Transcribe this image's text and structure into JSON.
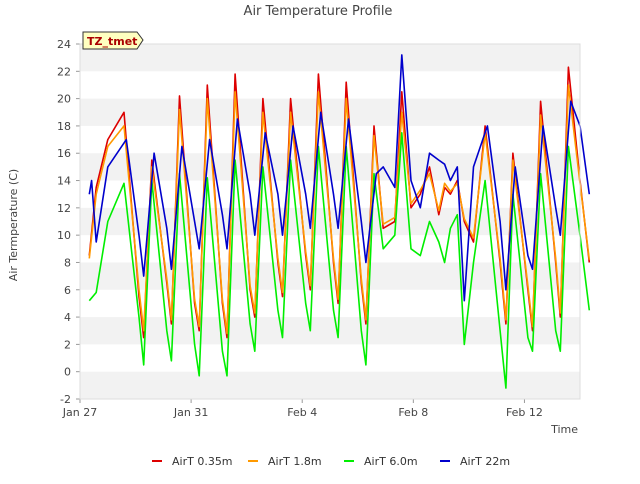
{
  "chart_data": {
    "type": "line",
    "title": "Air Temperature Profile",
    "xlabel": "Time",
    "ylabel": "Air Termperature (C)",
    "ylim": [
      -2,
      24
    ],
    "yticks": [
      -2,
      0,
      2,
      4,
      6,
      8,
      10,
      12,
      14,
      16,
      18,
      20,
      22,
      24
    ],
    "xlim": [
      "2025-01-27",
      "2025-02-14"
    ],
    "xticks": [
      {
        "date": "2025-01-27",
        "label": "Jan 27"
      },
      {
        "date": "2025-01-31",
        "label": "Jan 31"
      },
      {
        "date": "2025-02-04",
        "label": "Feb 4"
      },
      {
        "date": "2025-02-08",
        "label": "Feb 8"
      },
      {
        "date": "2025-02-12",
        "label": "Feb 12"
      }
    ],
    "grid": "horizontal bands",
    "legend_position": "bottom",
    "annotation": "TZ_tmet",
    "series": [
      {
        "name": "AirT 0.35m",
        "color": "#dd0000",
        "points": [
          [
            "2025-01-27 08:00",
            8.5
          ],
          [
            "2025-01-27 14:00",
            13.5
          ],
          [
            "2025-01-28 00:00",
            17.0
          ],
          [
            "2025-01-28 14:00",
            19.0
          ],
          [
            "2025-01-29 03:00",
            5.5
          ],
          [
            "2025-01-29 07:00",
            2.5
          ],
          [
            "2025-01-29 14:00",
            15.5
          ],
          [
            "2025-01-30 03:00",
            6.5
          ],
          [
            "2025-01-30 07:00",
            3.5
          ],
          [
            "2025-01-30 14:00",
            20.2
          ],
          [
            "2025-01-31 03:00",
            5.0
          ],
          [
            "2025-01-31 07:00",
            3.0
          ],
          [
            "2025-01-31 14:00",
            21.0
          ],
          [
            "2025-02-01 03:00",
            5.0
          ],
          [
            "2025-02-01 07:00",
            2.5
          ],
          [
            "2025-02-01 14:00",
            21.8
          ],
          [
            "2025-02-02 03:00",
            6.0
          ],
          [
            "2025-02-02 07:00",
            4.0
          ],
          [
            "2025-02-02 14:00",
            20.0
          ],
          [
            "2025-02-03 03:00",
            8.0
          ],
          [
            "2025-02-03 07:00",
            5.5
          ],
          [
            "2025-02-03 14:00",
            20.0
          ],
          [
            "2025-02-04 03:00",
            8.5
          ],
          [
            "2025-02-04 07:00",
            6.0
          ],
          [
            "2025-02-04 14:00",
            21.8
          ],
          [
            "2025-02-05 03:00",
            8.0
          ],
          [
            "2025-02-05 07:00",
            5.0
          ],
          [
            "2025-02-05 14:00",
            21.2
          ],
          [
            "2025-02-06 03:00",
            6.5
          ],
          [
            "2025-02-06 07:00",
            3.5
          ],
          [
            "2025-02-06 14:00",
            18.0
          ],
          [
            "2025-02-06 22:00",
            10.5
          ],
          [
            "2025-02-07 08:00",
            11.0
          ],
          [
            "2025-02-07 14:00",
            20.5
          ],
          [
            "2025-02-07 22:00",
            12.0
          ],
          [
            "2025-02-08 06:00",
            13.0
          ],
          [
            "2025-02-08 14:00",
            15.0
          ],
          [
            "2025-02-08 22:00",
            11.5
          ],
          [
            "2025-02-09 03:00",
            13.5
          ],
          [
            "2025-02-09 08:00",
            13.0
          ],
          [
            "2025-02-09 14:00",
            14.0
          ],
          [
            "2025-02-09 20:00",
            11.0
          ],
          [
            "2025-02-10 04:00",
            9.5
          ],
          [
            "2025-02-10 14:00",
            18.0
          ],
          [
            "2025-02-11 03:00",
            8.0
          ],
          [
            "2025-02-11 08:00",
            3.5
          ],
          [
            "2025-02-11 14:00",
            16.0
          ],
          [
            "2025-02-12 03:00",
            6.0
          ],
          [
            "2025-02-12 07:00",
            3.0
          ],
          [
            "2025-02-12 14:00",
            19.8
          ],
          [
            "2025-02-13 03:00",
            8.0
          ],
          [
            "2025-02-13 07:00",
            4.0
          ],
          [
            "2025-02-13 14:00",
            22.3
          ],
          [
            "2025-02-14 00:00",
            14.0
          ],
          [
            "2025-02-14 08:00",
            8.0
          ]
        ]
      },
      {
        "name": "AirT 1.8m",
        "color": "#ff9900",
        "points": [
          [
            "2025-01-27 08:00",
            8.3
          ],
          [
            "2025-01-27 14:00",
            13.0
          ],
          [
            "2025-01-28 00:00",
            16.5
          ],
          [
            "2025-01-28 14:00",
            18.0
          ],
          [
            "2025-01-29 03:00",
            6.0
          ],
          [
            "2025-01-29 07:00",
            3.0
          ],
          [
            "2025-01-29 14:00",
            15.0
          ],
          [
            "2025-01-30 03:00",
            6.8
          ],
          [
            "2025-01-30 07:00",
            3.8
          ],
          [
            "2025-01-30 14:00",
            19.2
          ],
          [
            "2025-01-31 03:00",
            5.3
          ],
          [
            "2025-01-31 07:00",
            3.3
          ],
          [
            "2025-01-31 14:00",
            20.0
          ],
          [
            "2025-02-01 03:00",
            5.3
          ],
          [
            "2025-02-01 07:00",
            2.8
          ],
          [
            "2025-02-01 14:00",
            20.5
          ],
          [
            "2025-02-02 03:00",
            6.3
          ],
          [
            "2025-02-02 07:00",
            4.3
          ],
          [
            "2025-02-02 14:00",
            19.0
          ],
          [
            "2025-02-03 03:00",
            8.3
          ],
          [
            "2025-02-03 07:00",
            5.8
          ],
          [
            "2025-02-03 14:00",
            19.0
          ],
          [
            "2025-02-04 03:00",
            8.8
          ],
          [
            "2025-02-04 07:00",
            6.3
          ],
          [
            "2025-02-04 14:00",
            20.5
          ],
          [
            "2025-02-05 03:00",
            8.3
          ],
          [
            "2025-02-05 07:00",
            5.3
          ],
          [
            "2025-02-05 14:00",
            20.0
          ],
          [
            "2025-02-06 03:00",
            6.8
          ],
          [
            "2025-02-06 07:00",
            3.8
          ],
          [
            "2025-02-06 14:00",
            17.3
          ],
          [
            "2025-02-06 22:00",
            10.8
          ],
          [
            "2025-02-07 08:00",
            11.3
          ],
          [
            "2025-02-07 14:00",
            19.0
          ],
          [
            "2025-02-07 22:00",
            12.3
          ],
          [
            "2025-02-08 06:00",
            13.3
          ],
          [
            "2025-02-08 14:00",
            14.5
          ],
          [
            "2025-02-08 22:00",
            11.8
          ],
          [
            "2025-02-09 03:00",
            13.8
          ],
          [
            "2025-02-09 08:00",
            13.2
          ],
          [
            "2025-02-09 14:00",
            13.8
          ],
          [
            "2025-02-09 20:00",
            11.2
          ],
          [
            "2025-02-10 04:00",
            9.8
          ],
          [
            "2025-02-10 14:00",
            17.5
          ],
          [
            "2025-02-11 03:00",
            8.3
          ],
          [
            "2025-02-11 08:00",
            3.8
          ],
          [
            "2025-02-11 14:00",
            15.5
          ],
          [
            "2025-02-12 03:00",
            6.3
          ],
          [
            "2025-02-12 07:00",
            3.3
          ],
          [
            "2025-02-12 14:00",
            18.8
          ],
          [
            "2025-02-13 03:00",
            8.3
          ],
          [
            "2025-02-13 07:00",
            4.3
          ],
          [
            "2025-02-13 14:00",
            21.0
          ],
          [
            "2025-02-14 00:00",
            13.8
          ],
          [
            "2025-02-14 08:00",
            8.2
          ]
        ]
      },
      {
        "name": "AirT 6.0m",
        "color": "#00ee00",
        "points": [
          [
            "2025-01-27 08:00",
            5.2
          ],
          [
            "2025-01-27 14:00",
            5.8
          ],
          [
            "2025-01-28 00:00",
            11.0
          ],
          [
            "2025-01-28 14:00",
            13.8
          ],
          [
            "2025-01-29 03:00",
            4.0
          ],
          [
            "2025-01-29 07:00",
            0.5
          ],
          [
            "2025-01-29 14:00",
            14.0
          ],
          [
            "2025-01-30 03:00",
            3.0
          ],
          [
            "2025-01-30 07:00",
            0.8
          ],
          [
            "2025-01-30 14:00",
            14.5
          ],
          [
            "2025-01-31 03:00",
            2.0
          ],
          [
            "2025-01-31 07:00",
            -0.3
          ],
          [
            "2025-01-31 14:00",
            14.2
          ],
          [
            "2025-02-01 03:00",
            1.5
          ],
          [
            "2025-02-01 07:00",
            -0.3
          ],
          [
            "2025-02-01 14:00",
            15.5
          ],
          [
            "2025-02-02 03:00",
            3.5
          ],
          [
            "2025-02-02 07:00",
            1.5
          ],
          [
            "2025-02-02 14:00",
            15.0
          ],
          [
            "2025-02-03 03:00",
            4.5
          ],
          [
            "2025-02-03 07:00",
            2.5
          ],
          [
            "2025-02-03 14:00",
            15.5
          ],
          [
            "2025-02-04 03:00",
            5.0
          ],
          [
            "2025-02-04 07:00",
            3.0
          ],
          [
            "2025-02-04 14:00",
            16.5
          ],
          [
            "2025-02-05 03:00",
            4.5
          ],
          [
            "2025-02-05 07:00",
            2.5
          ],
          [
            "2025-02-05 14:00",
            16.5
          ],
          [
            "2025-02-06 03:00",
            3.0
          ],
          [
            "2025-02-06 07:00",
            0.5
          ],
          [
            "2025-02-06 14:00",
            14.5
          ],
          [
            "2025-02-06 22:00",
            9.0
          ],
          [
            "2025-02-07 08:00",
            10.0
          ],
          [
            "2025-02-07 14:00",
            17.5
          ],
          [
            "2025-02-07 22:00",
            9.0
          ],
          [
            "2025-02-08 06:00",
            8.5
          ],
          [
            "2025-02-08 14:00",
            11.0
          ],
          [
            "2025-02-08 22:00",
            9.5
          ],
          [
            "2025-02-09 03:00",
            8.0
          ],
          [
            "2025-02-09 08:00",
            10.5
          ],
          [
            "2025-02-09 14:00",
            11.5
          ],
          [
            "2025-02-09 20:00",
            2.0
          ],
          [
            "2025-02-10 04:00",
            8.0
          ],
          [
            "2025-02-10 14:00",
            14.0
          ],
          [
            "2025-02-11 03:00",
            3.0
          ],
          [
            "2025-02-11 08:00",
            -1.2
          ],
          [
            "2025-02-11 14:00",
            13.0
          ],
          [
            "2025-02-12 03:00",
            2.5
          ],
          [
            "2025-02-12 07:00",
            1.5
          ],
          [
            "2025-02-12 14:00",
            14.5
          ],
          [
            "2025-02-13 03:00",
            3.0
          ],
          [
            "2025-02-13 07:00",
            1.5
          ],
          [
            "2025-02-13 14:00",
            16.5
          ],
          [
            "2025-02-14 00:00",
            10.0
          ],
          [
            "2025-02-14 08:00",
            4.5
          ]
        ]
      },
      {
        "name": "AirT 22m",
        "color": "#0000cc",
        "points": [
          [
            "2025-01-27 08:00",
            13.0
          ],
          [
            "2025-01-27 10:00",
            14.0
          ],
          [
            "2025-01-27 14:00",
            9.5
          ],
          [
            "2025-01-28 00:00",
            15.0
          ],
          [
            "2025-01-28 16:00",
            17.0
          ],
          [
            "2025-01-29 03:00",
            10.0
          ],
          [
            "2025-01-29 07:00",
            7.0
          ],
          [
            "2025-01-29 16:00",
            16.0
          ],
          [
            "2025-01-30 03:00",
            10.5
          ],
          [
            "2025-01-30 07:00",
            7.5
          ],
          [
            "2025-01-30 16:00",
            16.5
          ],
          [
            "2025-01-31 03:00",
            11.0
          ],
          [
            "2025-01-31 07:00",
            9.0
          ],
          [
            "2025-01-31 16:00",
            17.0
          ],
          [
            "2025-02-01 03:00",
            11.5
          ],
          [
            "2025-02-01 07:00",
            9.0
          ],
          [
            "2025-02-01 16:00",
            18.5
          ],
          [
            "2025-02-02 03:00",
            13.0
          ],
          [
            "2025-02-02 07:00",
            10.0
          ],
          [
            "2025-02-02 16:00",
            17.5
          ],
          [
            "2025-02-03 03:00",
            13.0
          ],
          [
            "2025-02-03 07:00",
            10.0
          ],
          [
            "2025-02-03 16:00",
            18.0
          ],
          [
            "2025-02-04 03:00",
            13.0
          ],
          [
            "2025-02-04 07:00",
            10.5
          ],
          [
            "2025-02-04 16:00",
            19.0
          ],
          [
            "2025-02-05 03:00",
            13.0
          ],
          [
            "2025-02-05 07:00",
            10.5
          ],
          [
            "2025-02-05 16:00",
            18.5
          ],
          [
            "2025-02-06 03:00",
            11.0
          ],
          [
            "2025-02-06 07:00",
            8.0
          ],
          [
            "2025-02-06 16:00",
            14.5
          ],
          [
            "2025-02-06 22:00",
            15.0
          ],
          [
            "2025-02-07 08:00",
            13.5
          ],
          [
            "2025-02-07 14:00",
            23.2
          ],
          [
            "2025-02-07 22:00",
            14.0
          ],
          [
            "2025-02-08 06:00",
            12.0
          ],
          [
            "2025-02-08 14:00",
            16.0
          ],
          [
            "2025-02-08 22:00",
            15.5
          ],
          [
            "2025-02-09 03:00",
            15.2
          ],
          [
            "2025-02-09 08:00",
            14.0
          ],
          [
            "2025-02-09 14:00",
            15.0
          ],
          [
            "2025-02-09 20:00",
            5.2
          ],
          [
            "2025-02-10 04:00",
            15.0
          ],
          [
            "2025-02-10 16:00",
            18.0
          ],
          [
            "2025-02-11 03:00",
            11.0
          ],
          [
            "2025-02-11 08:00",
            6.0
          ],
          [
            "2025-02-11 16:00",
            15.0
          ],
          [
            "2025-02-12 03:00",
            8.5
          ],
          [
            "2025-02-12 07:00",
            7.5
          ],
          [
            "2025-02-12 16:00",
            18.0
          ],
          [
            "2025-02-13 03:00",
            12.0
          ],
          [
            "2025-02-13 07:00",
            10.0
          ],
          [
            "2025-02-13 16:00",
            19.8
          ],
          [
            "2025-02-14 00:00",
            18.0
          ],
          [
            "2025-02-14 08:00",
            13.0
          ]
        ]
      }
    ]
  }
}
